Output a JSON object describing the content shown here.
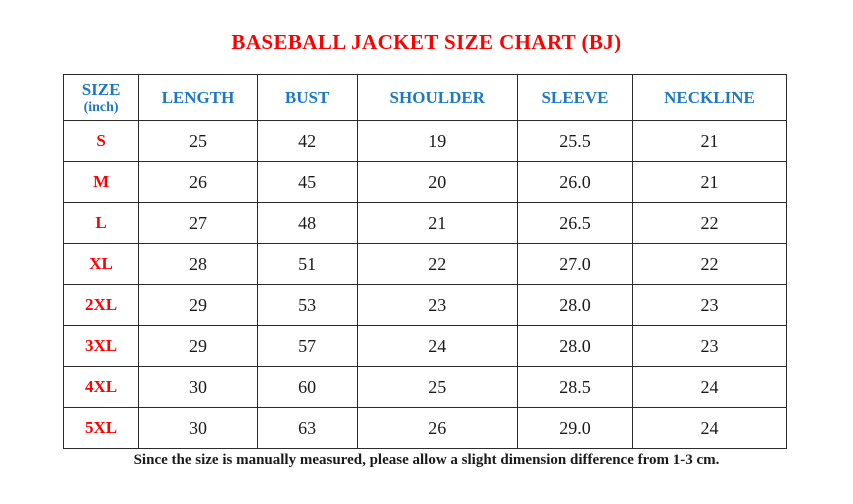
{
  "title": "BASEBALL JACKET SIZE CHART (BJ)",
  "footer_note": "Since the size is manually measured, please allow a slight dimension difference from 1-3 cm.",
  "colors": {
    "title_red": "#fe0000",
    "header_blue": "#1e78c2",
    "size_label_red": "#fe0000",
    "body_text": "#1a1a1a",
    "table_border": "#2b2b2b",
    "background": "#ffffff"
  },
  "table": {
    "size_header": {
      "line1": "SIZE",
      "line2": "(inch)"
    },
    "columns": [
      "LENGTH",
      "BUST",
      "SHOULDER",
      "SLEEVE",
      "NECKLINE"
    ],
    "rows": [
      {
        "size": "S",
        "length": "25",
        "bust": "42",
        "shoulder": "19",
        "sleeve": "25.5",
        "neckline": "21"
      },
      {
        "size": "M",
        "length": "26",
        "bust": "45",
        "shoulder": "20",
        "sleeve": "26.0",
        "neckline": "21"
      },
      {
        "size": "L",
        "length": "27",
        "bust": "48",
        "shoulder": "21",
        "sleeve": "26.5",
        "neckline": "22"
      },
      {
        "size": "XL",
        "length": "28",
        "bust": "51",
        "shoulder": "22",
        "sleeve": "27.0",
        "neckline": "22"
      },
      {
        "size": "2XL",
        "length": "29",
        "bust": "53",
        "shoulder": "23",
        "sleeve": "28.0",
        "neckline": "23"
      },
      {
        "size": "3XL",
        "length": "29",
        "bust": "57",
        "shoulder": "24",
        "sleeve": "28.0",
        "neckline": "23"
      },
      {
        "size": "4XL",
        "length": "30",
        "bust": "60",
        "shoulder": "25",
        "sleeve": "28.5",
        "neckline": "24"
      },
      {
        "size": "5XL",
        "length": "30",
        "bust": "63",
        "shoulder": "26",
        "sleeve": "29.0",
        "neckline": "24"
      }
    ]
  }
}
